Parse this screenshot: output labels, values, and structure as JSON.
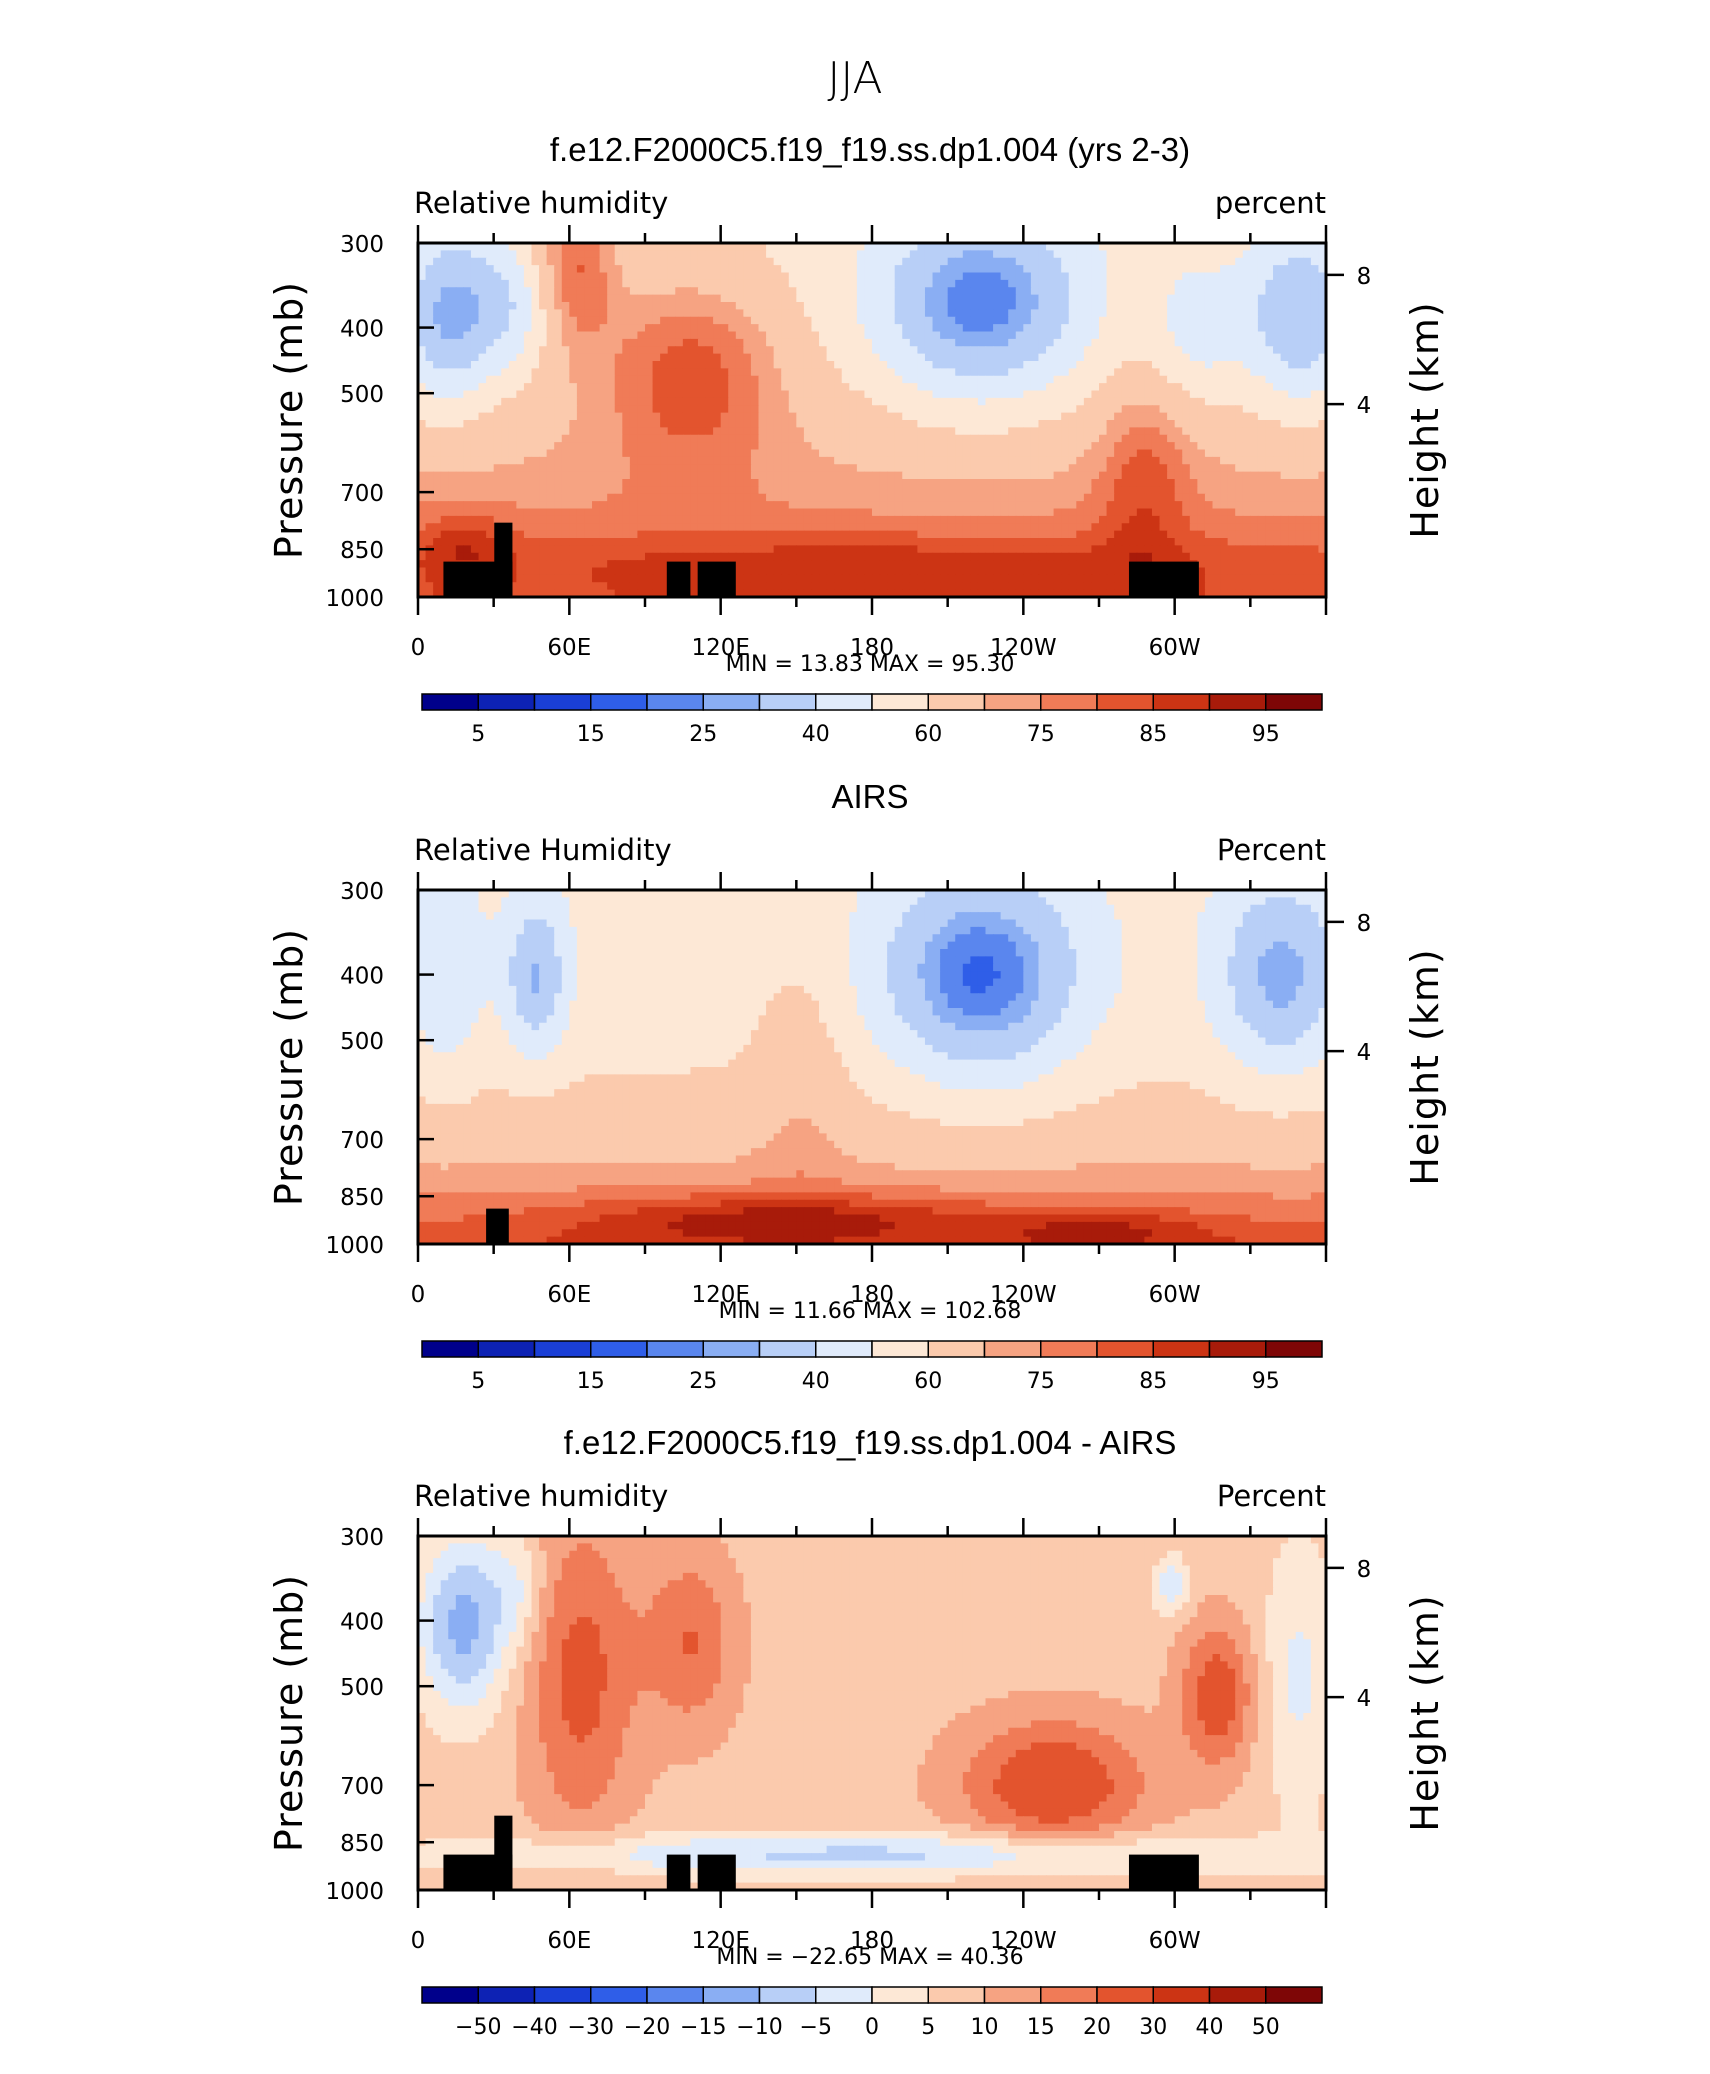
{
  "super_title": "JJA",
  "panels": [
    {
      "title": "f.e12.F2000C5.f19_f19.ss.dp1.004 (yrs 2-3)",
      "left_label": "Relative  humidity",
      "right_label": "percent",
      "min_max": "MIN =    13.83   MAX =    95.30",
      "kind": "abs",
      "colorbar_labels": [
        "5",
        "15",
        "25",
        "40",
        "60",
        "75",
        "85",
        "95"
      ],
      "chart_data": {
        "type": "heatmap",
        "xlabel": "",
        "ylabel": "Pressure  (mb)",
        "y2label": "Height  (km)",
        "x_ticks": [
          "0",
          "60E",
          "120E",
          "180",
          "120W",
          "60W"
        ],
        "y_ticks": [
          "300",
          "400",
          "500",
          "700",
          "850",
          "1000"
        ],
        "y2_ticks": [
          "8",
          "4"
        ],
        "min": 13.83,
        "max": 95.3
      }
    },
    {
      "title": "AIRS",
      "left_label": "Relative  Humidity",
      "right_label": "Percent",
      "min_max": "MIN =    11.66   MAX  =  102.68",
      "kind": "abs",
      "colorbar_labels": [
        "5",
        "15",
        "25",
        "40",
        "60",
        "75",
        "85",
        "95"
      ],
      "chart_data": {
        "type": "heatmap",
        "xlabel": "",
        "ylabel": "Pressure  (mb)",
        "y2label": "Height  (km)",
        "x_ticks": [
          "0",
          "60E",
          "120E",
          "180",
          "120W",
          "60W"
        ],
        "y_ticks": [
          "300",
          "400",
          "500",
          "700",
          "850",
          "1000"
        ],
        "y2_ticks": [
          "8",
          "4"
        ],
        "min": 11.66,
        "max": 102.68
      }
    },
    {
      "title": "f.e12.F2000C5.f19_f19.ss.dp1.004 - AIRS",
      "left_label": "Relative  humidity",
      "right_label": "Percent",
      "min_max": "MIN =  −22.65   MAX =    40.36",
      "kind": "diff",
      "colorbar_labels": [
        "−50",
        "−40",
        "−30",
        "−20",
        "−15",
        "−10",
        "−5",
        "0",
        "5",
        "10",
        "15",
        "20",
        "30",
        "40",
        "50"
      ],
      "chart_data": {
        "type": "heatmap",
        "xlabel": "",
        "ylabel": "Pressure  (mb)",
        "y2label": "Height  (km)",
        "x_ticks": [
          "0",
          "60E",
          "120E",
          "180",
          "120W",
          "60W"
        ],
        "y_ticks": [
          "300",
          "400",
          "500",
          "700",
          "850",
          "1000"
        ],
        "y2_ticks": [
          "8",
          "4"
        ],
        "min": -22.65,
        "max": 40.36
      }
    }
  ],
  "colors": {
    "palette": [
      "#00008b",
      "#0d22b4",
      "#1a3fd6",
      "#2f5ee8",
      "#5a86ee",
      "#8aaef3",
      "#b8cff7",
      "#e0ebfb",
      "#fde8d6",
      "#fbcaad",
      "#f6a382",
      "#f07b57",
      "#e3542e",
      "#cc3414",
      "#a81b0a",
      "#7e0606"
    ]
  }
}
